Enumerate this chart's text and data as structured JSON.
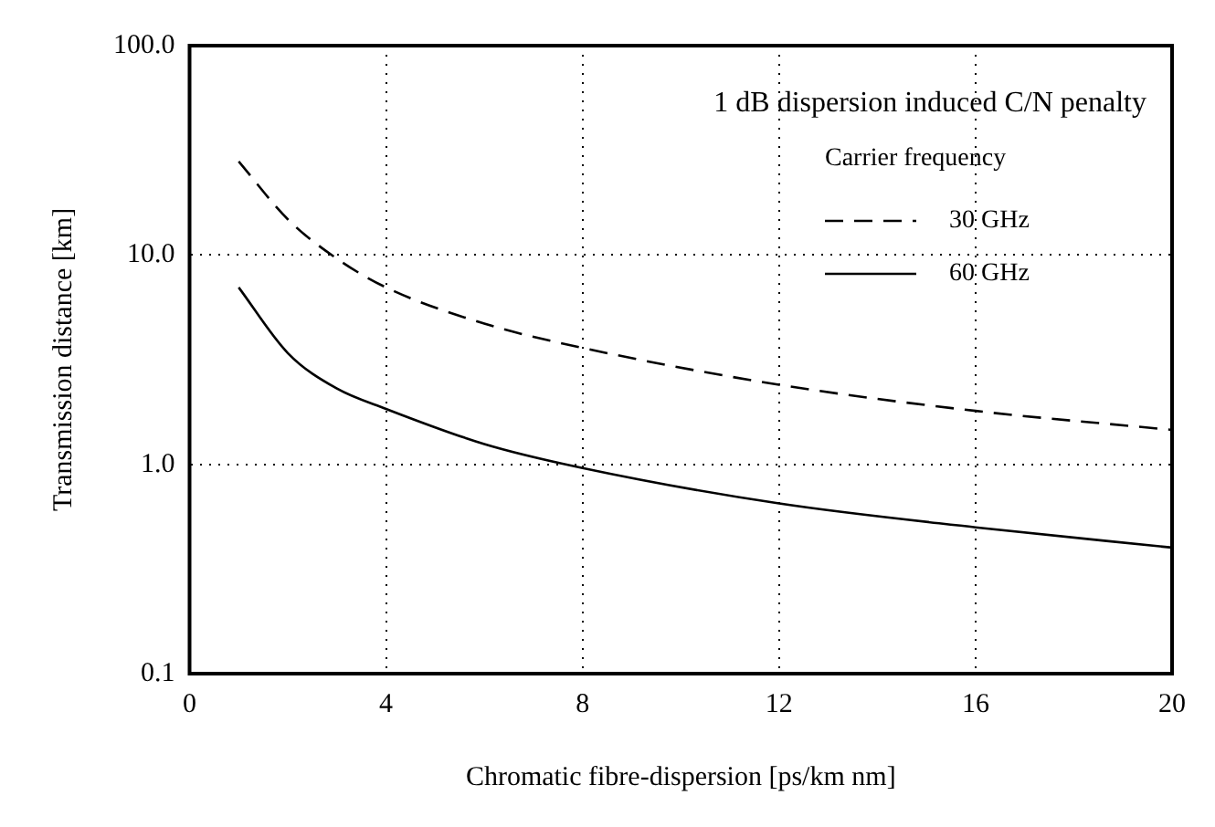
{
  "chart_data": {
    "type": "line",
    "title": "1 dB dispersion induced C/N penalty",
    "xlabel": "Chromatic fibre-dispersion [ps/km nm]",
    "ylabel": "Transmission distance [km]",
    "legend_title": "Carrier frequency",
    "legend": "top right",
    "log": "y",
    "grid": true,
    "marker": "none",
    "xlim": [
      0,
      20
    ],
    "xticks": [
      0,
      4,
      8,
      12,
      16,
      20
    ],
    "ylim": [
      0.1,
      100
    ],
    "yticks": [
      {
        "value": 0.1,
        "label": "0.1"
      },
      {
        "value": 1,
        "label": "1.0"
      },
      {
        "value": 10,
        "label": "10.0"
      },
      {
        "value": 100,
        "label": "100.0"
      }
    ],
    "x": [
      1,
      2,
      3,
      4,
      6,
      8,
      12,
      16,
      20
    ],
    "series": [
      {
        "name": "30 GHz",
        "color": "#000000",
        "line_style": "dashed",
        "values": [
          28,
          14.8,
          9.6,
          7.0,
          4.7,
          3.6,
          2.4,
          1.8,
          1.46
        ]
      },
      {
        "name": "60 GHz",
        "color": "#000000",
        "line_style": "solid",
        "values": [
          7.0,
          3.4,
          2.3,
          1.84,
          1.25,
          0.96,
          0.65,
          0.5,
          0.4
        ]
      }
    ]
  }
}
